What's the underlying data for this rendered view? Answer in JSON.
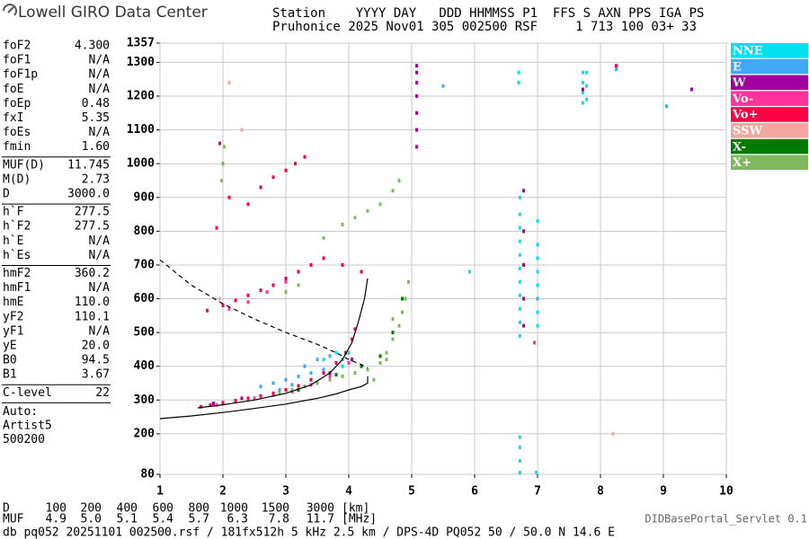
{
  "header": {
    "brand": "Lowell GIRO Data Center",
    "row1": "Station    YYYY DAY   DDD HHMMSS P1  FFS S AXN PPS IGA PS",
    "row2": "Pruhonice 2025 Nov01 305 002500 RSF     1 713 100 03+ 33"
  },
  "parameters": [
    [
      [
        "foF2",
        "4.300"
      ],
      [
        "foF1",
        "N/A"
      ],
      [
        "foF1p",
        "N/A"
      ],
      [
        "foE",
        "N/A"
      ],
      [
        "foEp",
        "0.48"
      ],
      [
        "fxI",
        "5.35"
      ],
      [
        "foEs",
        "N/A"
      ],
      [
        "fmin",
        "1.60"
      ]
    ],
    [
      [
        "MUF(D)",
        "11.745"
      ],
      [
        "M(D)",
        "2.73"
      ],
      [
        "D",
        "3000.0"
      ]
    ],
    [
      [
        "h`F",
        "277.5"
      ],
      [
        "h`F2",
        "277.5"
      ],
      [
        "h`E",
        "N/A"
      ],
      [
        "h`Es",
        "N/A"
      ]
    ],
    [
      [
        "hmF2",
        "360.2"
      ],
      [
        "hmF1",
        "N/A"
      ],
      [
        "hmE",
        "110.0"
      ],
      [
        "yF2",
        "110.1"
      ],
      [
        "yF1",
        "N/A"
      ],
      [
        "yE",
        "20.0"
      ],
      [
        "B0",
        "94.5"
      ],
      [
        "B1",
        "3.67"
      ]
    ],
    [
      [
        "C-level",
        "22"
      ]
    ]
  ],
  "autoscaling": [
    "Auto:",
    "Artist5",
    "500200"
  ],
  "chart_data": {
    "type": "scatter",
    "xlim": [
      1,
      10
    ],
    "xticks": [
      1,
      2,
      3,
      4,
      5,
      6,
      7,
      8,
      9,
      10
    ],
    "ylim": [
      80,
      1357
    ],
    "yticks": [
      80,
      200,
      300,
      400,
      500,
      600,
      700,
      800,
      900,
      1000,
      1100,
      1200,
      1300,
      1357
    ],
    "grid": true,
    "legend": "right",
    "series": [
      {
        "name": "NNE",
        "color": "#00e1f0",
        "x": [
          6.72,
          6.72,
          6.72,
          6.72,
          6.72,
          6.72,
          6.72,
          6.72,
          6.72,
          6.72,
          6.72,
          7.0,
          7.0,
          7.0,
          7.0,
          7.0,
          7.0,
          7.0,
          7.0,
          7.72,
          7.72,
          7.72,
          7.72,
          7.78,
          7.78,
          7.78,
          6.72,
          6.72,
          6.72,
          6.72,
          6.98,
          5.92,
          6.7,
          6.7,
          3.6,
          3.8,
          3.9,
          4.1
        ],
        "values": [
          490,
          530,
          570,
          610,
          650,
          690,
          730,
          770,
          810,
          850,
          900,
          520,
          560,
          600,
          640,
          680,
          720,
          760,
          830,
          1180,
          1210,
          1240,
          1270,
          1190,
          1230,
          1270,
          85,
          120,
          160,
          190,
          85,
          680,
          1240,
          1270,
          420,
          440,
          400,
          380
        ]
      },
      {
        "name": "E",
        "color": "#3fa9f5",
        "x": [
          2.6,
          2.8,
          3.0,
          3.2,
          3.4,
          3.6,
          3.8,
          3.9,
          4.0,
          2.9,
          3.1,
          3.3,
          3.5,
          3.7,
          6.78,
          6.78,
          6.78,
          7.0,
          8.25,
          5.5,
          9.05
        ],
        "values": [
          340,
          350,
          360,
          370,
          380,
          390,
          410,
          420,
          440,
          330,
          345,
          400,
          420,
          430,
          600,
          700,
          800,
          600,
          1280,
          1230,
          1170
        ]
      },
      {
        "name": "W",
        "color": "#a000a0",
        "x": [
          5.08,
          5.08,
          5.08,
          5.08,
          5.08,
          5.08,
          5.08,
          6.78,
          6.78,
          6.78,
          6.78,
          6.78,
          1.85,
          2.3,
          2.9,
          3.3,
          3.7,
          4.05,
          7.72,
          9.45
        ],
        "values": [
          1050,
          1100,
          1150,
          1200,
          1240,
          1270,
          1290,
          520,
          600,
          700,
          800,
          920,
          290,
          305,
          320,
          340,
          380,
          420,
          1220,
          1220
        ]
      },
      {
        "name": "Vo-",
        "color": "#ff3399",
        "x": [
          1.9,
          2.2,
          2.5,
          2.8,
          3.1,
          3.4,
          3.7,
          4.0,
          2.1,
          2.4,
          2.7,
          3.0,
          6.95
        ],
        "values": [
          285,
          295,
          305,
          315,
          325,
          345,
          370,
          410,
          570,
          590,
          620,
          650,
          470
        ]
      },
      {
        "name": "Vo+",
        "color": "#ff0044",
        "x": [
          1.65,
          1.8,
          2.0,
          2.2,
          2.4,
          2.6,
          2.8,
          3.0,
          3.2,
          3.4,
          3.6,
          3.8,
          3.95,
          4.05,
          4.1,
          1.75,
          2.0,
          2.2,
          2.4,
          2.6,
          2.8,
          3.0,
          3.2,
          3.4,
          3.6,
          3.9,
          4.2,
          2.4,
          2.6,
          2.8,
          3.0,
          3.15,
          3.3,
          1.95,
          2.1,
          1.9,
          8.25
        ],
        "values": [
          280,
          285,
          292,
          298,
          305,
          312,
          320,
          330,
          342,
          360,
          380,
          410,
          440,
          480,
          510,
          565,
          580,
          595,
          610,
          625,
          640,
          660,
          680,
          700,
          720,
          700,
          680,
          880,
          930,
          960,
          980,
          1000,
          1020,
          1060,
          900,
          810,
          1290
        ]
      },
      {
        "name": "SSW",
        "color": "#f4a6a0",
        "x": [
          2.1,
          2.3,
          1.95,
          8.2,
          3.3
        ],
        "values": [
          1240,
          1100,
          600,
          200,
          340
        ]
      },
      {
        "name": "X-",
        "color": "#007a00",
        "x": [
          3.2,
          3.5,
          3.8,
          4.2,
          4.5,
          4.7,
          4.85,
          2.9,
          2.0
        ],
        "values": [
          330,
          350,
          375,
          400,
          430,
          500,
          600,
          320,
          1000
        ]
      },
      {
        "name": "X+",
        "color": "#80b860",
        "x": [
          2.9,
          3.1,
          3.3,
          3.5,
          3.7,
          3.9,
          4.1,
          4.3,
          4.5,
          4.6,
          4.7,
          4.8,
          4.85,
          4.9,
          4.95,
          4.4,
          4.6,
          4.7,
          3.6,
          3.9,
          4.1,
          4.3,
          4.5,
          4.7,
          4.8,
          1.98,
          2.0,
          2.02,
          3.0,
          3.2
        ],
        "values": [
          320,
          330,
          340,
          350,
          360,
          370,
          380,
          390,
          410,
          440,
          480,
          520,
          560,
          600,
          650,
          360,
          420,
          540,
          780,
          820,
          840,
          860,
          880,
          920,
          950,
          950,
          1000,
          1050,
          620,
          640
        ]
      }
    ],
    "lines": [
      {
        "dashed": false,
        "x": [
          1,
          1.5,
          2,
          2.5,
          3,
          3.5,
          3.8,
          4.0,
          4.2,
          4.3,
          4.3
        ],
        "values": [
          245,
          253,
          263,
          275,
          288,
          305,
          318,
          330,
          340,
          350,
          370
        ]
      },
      {
        "dashed": false,
        "x": [
          1.6,
          2.0,
          2.5,
          3.0,
          3.4,
          3.7,
          3.9,
          4.05,
          4.15,
          4.25,
          4.3
        ],
        "values": [
          277,
          286,
          300,
          320,
          345,
          380,
          420,
          470,
          530,
          600,
          660
        ]
      },
      {
        "dashed": true,
        "x": [
          1,
          1.5,
          2,
          2.5,
          3,
          3.5,
          3.8,
          4.0,
          4.2,
          4.3
        ],
        "values": [
          715,
          640,
          585,
          540,
          500,
          465,
          440,
          420,
          405,
          395
        ]
      }
    ]
  },
  "muf_table": {
    "d_label": "D",
    "d_values": [
      "100",
      "200",
      "400",
      "600",
      "800",
      "1000",
      "1500",
      "3000"
    ],
    "d_unit": "[km]",
    "muf_label": "MUF",
    "muf_values": [
      "4.9",
      "5.0",
      "5.1",
      "5.4",
      "5.7",
      "6.3",
      "7.8",
      "11.7"
    ],
    "muf_unit": "[MHz]"
  },
  "footer": {
    "servlet": "DIDBasePortal_Servlet 0.1",
    "file_info": "db pq052 20251101 002500.rsf / 181fx512h 5 kHz 2.5 km / DPS-4D PQ052 50 / 50.0 N 14.6 E"
  }
}
